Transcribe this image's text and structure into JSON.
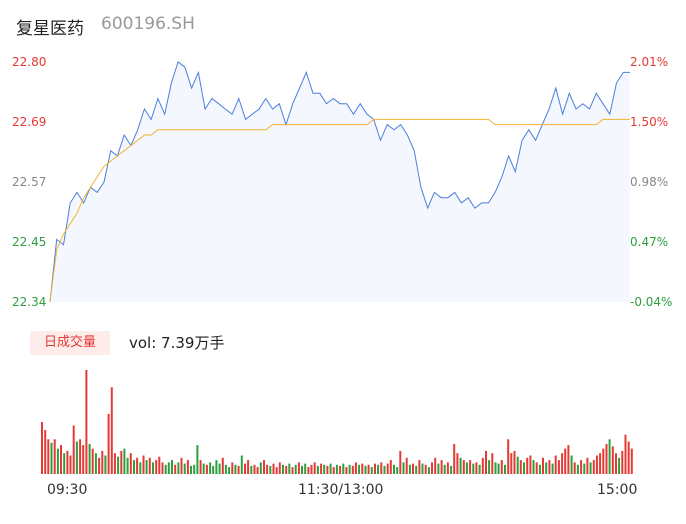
{
  "header": {
    "name": "复星医药",
    "code": "600196.SH"
  },
  "chart_data": {
    "type": "line",
    "y_left_ticks": [
      "22.80",
      "22.69",
      "22.57",
      "22.45",
      "22.34"
    ],
    "y_right_ticks": [
      "2.01%",
      "1.50%",
      "0.98%",
      "0.47%",
      "-0.04%"
    ],
    "x_ticks": [
      "09:30",
      "11:30/13:00",
      "15:00"
    ],
    "ylim": [
      22.34,
      22.8
    ],
    "price": [
      22.34,
      22.46,
      22.45,
      22.53,
      22.55,
      22.53,
      22.56,
      22.55,
      22.57,
      22.63,
      22.62,
      22.66,
      22.64,
      22.67,
      22.71,
      22.69,
      22.73,
      22.7,
      22.76,
      22.8,
      22.79,
      22.75,
      22.78,
      22.71,
      22.73,
      22.72,
      22.71,
      22.7,
      22.73,
      22.69,
      22.7,
      22.71,
      22.73,
      22.71,
      22.72,
      22.68,
      22.72,
      22.75,
      22.78,
      22.74,
      22.74,
      22.72,
      22.73,
      22.72,
      22.72,
      22.7,
      22.72,
      22.7,
      22.69,
      22.65,
      22.68,
      22.67,
      22.68,
      22.66,
      22.63,
      22.56,
      22.52,
      22.55,
      22.54,
      22.54,
      22.55,
      22.53,
      22.54,
      22.52,
      22.53,
      22.53,
      22.55,
      22.58,
      22.62,
      22.59,
      22.65,
      22.67,
      22.65,
      22.68,
      22.71,
      22.75,
      22.7,
      22.74,
      22.71,
      22.72,
      22.71,
      22.74,
      22.72,
      22.7,
      22.76,
      22.78,
      22.78
    ],
    "avg": [
      22.34,
      22.44,
      22.47,
      22.49,
      22.51,
      22.54,
      22.56,
      22.58,
      22.6,
      22.61,
      22.62,
      22.63,
      22.64,
      22.65,
      22.66,
      22.66,
      22.67,
      22.67,
      22.67,
      22.67,
      22.67,
      22.67,
      22.67,
      22.67,
      22.67,
      22.67,
      22.67,
      22.67,
      22.67,
      22.67,
      22.67,
      22.67,
      22.67,
      22.68,
      22.68,
      22.68,
      22.68,
      22.68,
      22.68,
      22.68,
      22.68,
      22.68,
      22.68,
      22.68,
      22.68,
      22.68,
      22.68,
      22.68,
      22.69,
      22.69,
      22.69,
      22.69,
      22.69,
      22.69,
      22.69,
      22.69,
      22.69,
      22.69,
      22.69,
      22.69,
      22.69,
      22.69,
      22.69,
      22.69,
      22.69,
      22.69,
      22.68,
      22.68,
      22.68,
      22.68,
      22.68,
      22.68,
      22.68,
      22.68,
      22.68,
      22.68,
      22.68,
      22.68,
      22.68,
      22.68,
      22.68,
      22.68,
      22.69,
      22.69,
      22.69,
      22.69,
      22.69
    ],
    "volume": {
      "label": "日成交量",
      "total": "vol: 7.39万手",
      "up_color": "#e53935",
      "down_color": "#2e9e3e",
      "values": [
        45,
        38,
        30,
        27,
        30,
        22,
        25,
        18,
        20,
        16,
        42,
        28,
        30,
        25,
        90,
        26,
        22,
        18,
        14,
        20,
        16,
        52,
        75,
        18,
        15,
        20,
        22,
        14,
        18,
        12,
        14,
        10,
        16,
        12,
        14,
        10,
        12,
        15,
        10,
        8,
        10,
        12,
        8,
        10,
        14,
        9,
        12,
        7,
        8,
        25,
        12,
        9,
        8,
        10,
        7,
        12,
        9,
        14,
        8,
        6,
        10,
        8,
        7,
        16,
        9,
        12,
        7,
        8,
        6,
        10,
        12,
        8,
        7,
        9,
        6,
        10,
        8,
        7,
        9,
        6,
        8,
        10,
        7,
        9,
        6,
        8,
        10,
        7,
        9,
        8,
        7,
        9,
        6,
        8,
        7,
        9,
        6,
        8,
        7,
        10,
        8,
        9,
        7,
        8,
        6,
        9,
        8,
        10,
        7,
        9,
        12,
        8,
        6,
        20,
        10,
        14,
        8,
        9,
        7,
        12,
        9,
        8,
        6,
        10,
        14,
        9,
        12,
        8,
        10,
        7,
        26,
        18,
        14,
        12,
        10,
        12,
        9,
        10,
        8,
        14,
        20,
        12,
        18,
        10,
        9,
        12,
        8,
        30,
        18,
        20,
        15,
        12,
        10,
        14,
        16,
        12,
        10,
        8,
        14,
        10,
        12,
        9,
        16,
        12,
        18,
        22,
        25,
        16,
        10,
        8,
        12,
        9,
        14,
        10,
        12,
        16,
        18,
        22,
        26,
        30,
        24,
        18,
        14,
        20,
        34,
        28,
        22
      ],
      "up": [
        1,
        1,
        1,
        0,
        1,
        0,
        1,
        0,
        1,
        1,
        1,
        0,
        1,
        1,
        1,
        0,
        1,
        0,
        1,
        1,
        0,
        1,
        1,
        1,
        0,
        1,
        0,
        0,
        1,
        0,
        1,
        0,
        1,
        0,
        1,
        0,
        1,
        1,
        1,
        0,
        0,
        0,
        1,
        0,
        1,
        0,
        1,
        0,
        0,
        0,
        1,
        0,
        1,
        0,
        0,
        0,
        0,
        1,
        0,
        0,
        1,
        0,
        1,
        0,
        1,
        1,
        0,
        1,
        1,
        0,
        1,
        1,
        0,
        1,
        1,
        1,
        0,
        1,
        0,
        1,
        0,
        1,
        0,
        0,
        1,
        1,
        1,
        0,
        1,
        0,
        1,
        0,
        1,
        0,
        1,
        0,
        1,
        0,
        1,
        1,
        0,
        1,
        0,
        1,
        0,
        1,
        0,
        1,
        0,
        1,
        1,
        0,
        0,
        1,
        0,
        1,
        0,
        1,
        0,
        1,
        0,
        1,
        0,
        1,
        1,
        0,
        1,
        0,
        1,
        0,
        1,
        1,
        0,
        1,
        0,
        1,
        0,
        1,
        0,
        1,
        1,
        0,
        1,
        0,
        0,
        1,
        0,
        1,
        1,
        1,
        0,
        1,
        0,
        1,
        1,
        0,
        1,
        0,
        1,
        0,
        1,
        0,
        1,
        1,
        1,
        1,
        1,
        0,
        1,
        0,
        1,
        0,
        1,
        0,
        1,
        1,
        1,
        1,
        1,
        0,
        1,
        1,
        0,
        1,
        1,
        1,
        1
      ]
    }
  }
}
